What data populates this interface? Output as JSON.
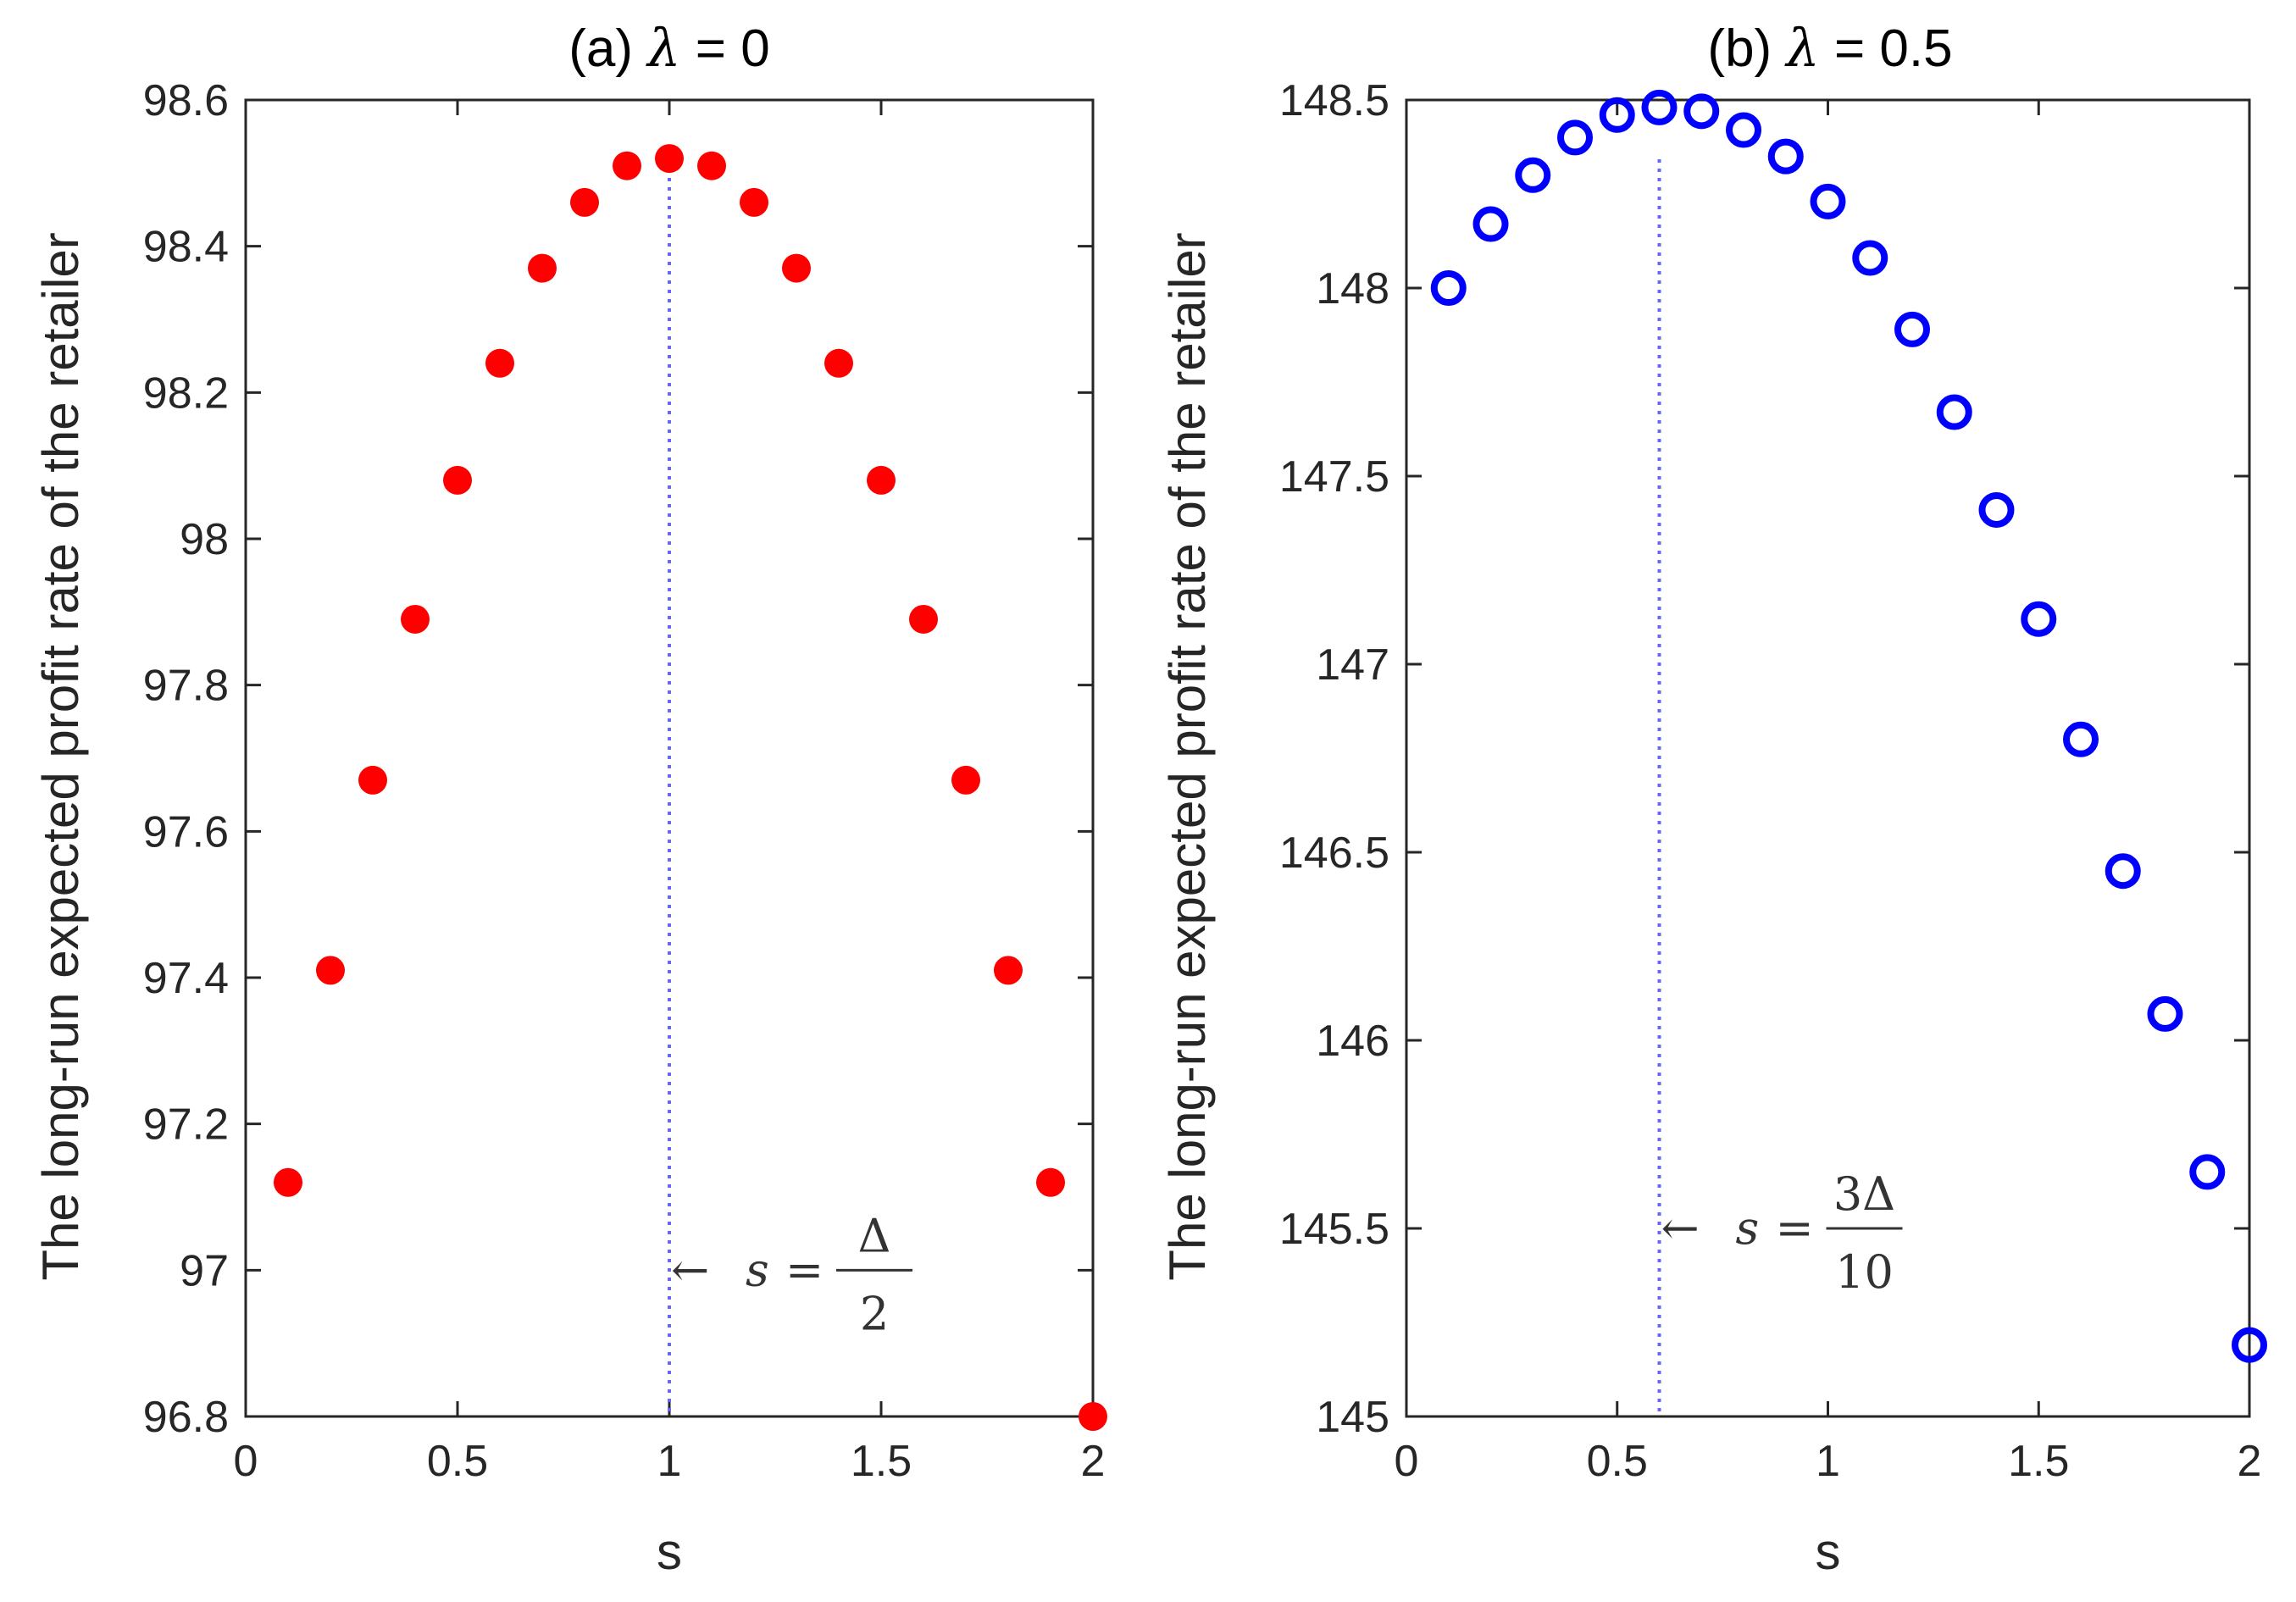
{
  "chart_data": [
    {
      "type": "scatter",
      "title_prefix": "(a) ",
      "title_symbol": "λ",
      "title_suffix": " = 0",
      "xlabel": "s",
      "ylabel": "The long-run expected profit rate of the retailer",
      "xlim": [
        0,
        2
      ],
      "ylim": [
        96.8,
        98.6
      ],
      "xticks": [
        0,
        0.5,
        1,
        1.5,
        2
      ],
      "xtick_labels": [
        "0",
        "0.5",
        "1",
        "1.5",
        "2"
      ],
      "yticks": [
        96.8,
        97,
        97.2,
        97.4,
        97.6,
        97.8,
        98,
        98.2,
        98.4,
        98.6
      ],
      "ytick_labels": [
        "96.8",
        "97",
        "97.2",
        "97.4",
        "97.6",
        "97.8",
        "98",
        "98.2",
        "98.4",
        "98.6"
      ],
      "marker": "filled-circle",
      "color": "#ff0000",
      "x": [
        0.1,
        0.2,
        0.3,
        0.4,
        0.5,
        0.6,
        0.7,
        0.8,
        0.9,
        1.0,
        1.1,
        1.2,
        1.3,
        1.4,
        1.5,
        1.6,
        1.7,
        1.8,
        1.9,
        2.0
      ],
      "y": [
        97.12,
        97.41,
        97.67,
        97.89,
        98.08,
        98.24,
        98.37,
        98.46,
        98.51,
        98.52,
        98.51,
        98.46,
        98.37,
        98.24,
        98.08,
        97.89,
        97.67,
        97.41,
        97.12,
        96.8
      ],
      "vline": {
        "x": 1.0,
        "color": "#6666ff",
        "style": "dotted"
      },
      "annotation": {
        "arrow": "←",
        "lhs": "s",
        "eq": "=",
        "numerator": "Δ",
        "denominator": "2",
        "x": 1.0,
        "y": 97.0
      }
    },
    {
      "type": "scatter",
      "title_prefix": "(b) ",
      "title_symbol": "λ",
      "title_suffix": " = 0.5",
      "xlabel": "s",
      "ylabel": "The long-run expected profit rate of the retailer",
      "xlim": [
        0,
        2
      ],
      "ylim": [
        145,
        148.5
      ],
      "xticks": [
        0,
        0.5,
        1,
        1.5,
        2
      ],
      "xtick_labels": [
        "0",
        "0.5",
        "1",
        "1.5",
        "2"
      ],
      "yticks": [
        145,
        145.5,
        146,
        146.5,
        147,
        147.5,
        148,
        148.5
      ],
      "ytick_labels": [
        "145",
        "145.5",
        "146",
        "146.5",
        "147",
        "147.5",
        "148",
        "148.5"
      ],
      "marker": "open-circle",
      "color": "#0000ff",
      "x": [
        0.1,
        0.2,
        0.3,
        0.4,
        0.5,
        0.6,
        0.7,
        0.8,
        0.9,
        1.0,
        1.1,
        1.2,
        1.3,
        1.4,
        1.5,
        1.6,
        1.7,
        1.8,
        1.9,
        2.0
      ],
      "y": [
        148.0,
        148.17,
        148.3,
        148.4,
        148.46,
        148.48,
        148.47,
        148.42,
        148.35,
        148.23,
        148.08,
        147.89,
        147.67,
        147.41,
        147.12,
        146.8,
        146.45,
        146.07,
        145.65,
        145.19
      ],
      "vline": {
        "x": 0.6,
        "color": "#6666ff",
        "style": "dotted"
      },
      "annotation": {
        "arrow": "←",
        "lhs": "s",
        "eq": "=",
        "numerator": "3Δ",
        "denominator": "10",
        "x": 0.6,
        "y": 145.5
      }
    }
  ]
}
